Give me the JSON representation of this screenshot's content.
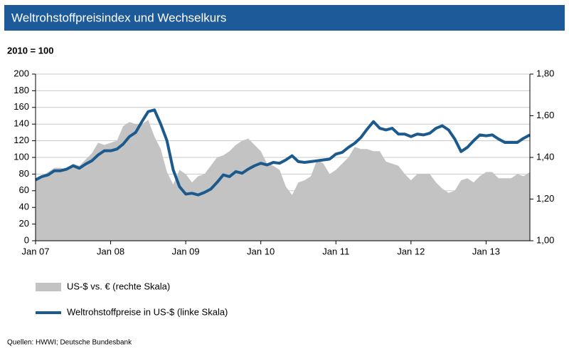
{
  "header": {
    "title": "Weltrohstoffpreisindex  und Wechselkurs"
  },
  "chart_data": {
    "type": "line",
    "subtitle": "2010 = 100",
    "source": "Quellen: HWWI; Deutsche Bundesbank",
    "categories": [
      "Jan 07",
      null,
      null,
      null,
      null,
      null,
      null,
      null,
      null,
      null,
      null,
      null,
      "Jan 08",
      null,
      null,
      null,
      null,
      null,
      null,
      null,
      null,
      null,
      null,
      null,
      "Jan 09",
      null,
      null,
      null,
      null,
      null,
      null,
      null,
      null,
      null,
      null,
      null,
      "Jan 10",
      null,
      null,
      null,
      null,
      null,
      null,
      null,
      null,
      null,
      null,
      null,
      "Jan 11",
      null,
      null,
      null,
      null,
      null,
      null,
      null,
      null,
      null,
      null,
      null,
      "Jan 12",
      null,
      null,
      null,
      null,
      null,
      null,
      null,
      null,
      null,
      null,
      null,
      "Jan 13",
      null,
      null,
      null,
      null,
      null,
      null,
      null
    ],
    "series": [
      {
        "name": "US-$ vs. € (rechte Skala)",
        "type": "area",
        "axis": "y2",
        "color": "#c3c3c3",
        "values": [
          1.3,
          1.31,
          1.33,
          1.35,
          1.35,
          1.34,
          1.37,
          1.36,
          1.39,
          1.42,
          1.47,
          1.46,
          1.47,
          1.48,
          1.55,
          1.57,
          1.56,
          1.56,
          1.58,
          1.5,
          1.44,
          1.33,
          1.27,
          1.34,
          1.32,
          1.28,
          1.31,
          1.32,
          1.36,
          1.4,
          1.41,
          1.43,
          1.46,
          1.48,
          1.49,
          1.46,
          1.43,
          1.37,
          1.36,
          1.34,
          1.26,
          1.22,
          1.28,
          1.29,
          1.31,
          1.39,
          1.37,
          1.32,
          1.34,
          1.37,
          1.4,
          1.45,
          1.44,
          1.44,
          1.43,
          1.43,
          1.38,
          1.37,
          1.36,
          1.32,
          1.29,
          1.32,
          1.32,
          1.32,
          1.28,
          1.25,
          1.23,
          1.24,
          1.29,
          1.3,
          1.28,
          1.31,
          1.33,
          1.33,
          1.3,
          1.3,
          1.3,
          1.32,
          1.31,
          1.33
        ]
      },
      {
        "name": "Weltrohstoffpreise in US-$ (linke Skala)",
        "type": "line",
        "color": "#1c5a8e",
        "values": [
          73,
          77,
          79,
          84,
          84,
          86,
          90,
          87,
          92,
          96,
          103,
          108,
          108,
          110,
          116,
          125,
          130,
          143,
          155,
          157,
          140,
          120,
          85,
          65,
          56,
          57,
          55,
          58,
          62,
          70,
          79,
          77,
          83,
          81,
          86,
          90,
          93,
          91,
          94,
          93,
          97,
          102,
          95,
          94,
          95,
          96,
          97,
          98,
          104,
          106,
          112,
          117,
          124,
          134,
          143,
          135,
          133,
          135,
          128,
          128,
          125,
          128,
          127,
          129,
          135,
          138,
          133,
          122,
          107,
          112,
          120,
          127,
          126,
          127,
          122,
          118,
          118,
          118,
          123,
          127
        ]
      }
    ],
    "ylim": [
      0,
      200
    ],
    "yticks": [
      0,
      20,
      40,
      60,
      80,
      100,
      120,
      140,
      160,
      180,
      200
    ],
    "y2lim": [
      1.0,
      1.8
    ],
    "y2ticks": [
      {
        "value": 1.0,
        "label": "1,00"
      },
      {
        "value": 1.2,
        "label": "1,20"
      },
      {
        "value": 1.4,
        "label": "1,40"
      },
      {
        "value": 1.6,
        "label": "1,60"
      },
      {
        "value": 1.8,
        "label": "1,80"
      }
    ],
    "grid": true
  }
}
